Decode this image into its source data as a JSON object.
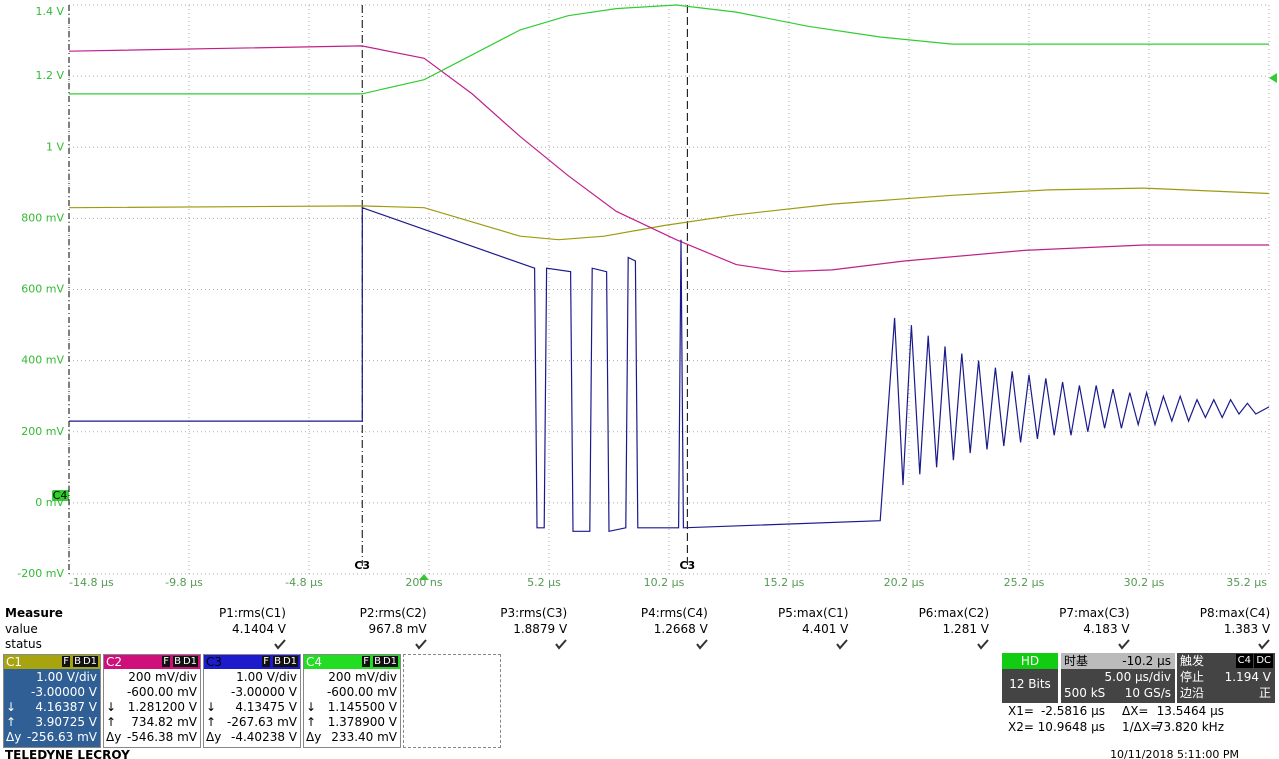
{
  "chart_data": {
    "type": "line",
    "xlim": [
      -14.8,
      35.2
    ],
    "ylim": [
      -0.2,
      1.4
    ],
    "grid": true,
    "xticks": [
      {
        "value": -14.8,
        "label": "-14.8 µs"
      },
      {
        "value": -9.8,
        "label": "-9.8 µs"
      },
      {
        "value": -4.8,
        "label": "-4.8 µs"
      },
      {
        "value": 0.2,
        "label": "200 ns"
      },
      {
        "value": 5.2,
        "label": "5.2 µs"
      },
      {
        "value": 10.2,
        "label": "10.2 µs"
      },
      {
        "value": 15.2,
        "label": "15.2 µs"
      },
      {
        "value": 20.2,
        "label": "20.2 µs"
      },
      {
        "value": 25.2,
        "label": "25.2 µs"
      },
      {
        "value": 30.2,
        "label": "30.2 µs"
      },
      {
        "value": 35.2,
        "label": "35.2 µs"
      }
    ],
    "yticks": [
      {
        "value": -0.2,
        "label": "-200 mV"
      },
      {
        "value": 0,
        "label": "0 mV"
      },
      {
        "value": 0.2,
        "label": "200 mV"
      },
      {
        "value": 0.4,
        "label": "400 mV"
      },
      {
        "value": 0.6,
        "label": "600 mV"
      },
      {
        "value": 0.8,
        "label": "800 mV"
      },
      {
        "value": 1,
        "label": "1 V"
      },
      {
        "value": 1.2,
        "label": "1.2 V"
      },
      {
        "value": 1.4,
        "label": "1.4 V"
      }
    ],
    "cursors": [
      {
        "x": -2.5816,
        "label": "C3"
      },
      {
        "x": 10.9648,
        "label": "C3"
      }
    ],
    "series": [
      {
        "name": "C1",
        "color": "#a09a10",
        "x": [
          -14.8,
          -2.6,
          0,
          2,
          4,
          5.6,
          7.5,
          10,
          13,
          17,
          22,
          26,
          30,
          35.2
        ],
        "values": [
          0.83,
          0.835,
          0.83,
          0.79,
          0.75,
          0.74,
          0.75,
          0.78,
          0.81,
          0.84,
          0.865,
          0.88,
          0.885,
          0.87
        ]
      },
      {
        "name": "C2",
        "color": "#c0208a",
        "x": [
          -14.8,
          -2.6,
          0,
          2,
          4,
          6,
          8,
          10.5,
          13,
          15,
          17,
          20,
          25,
          30,
          35.2
        ],
        "values": [
          1.27,
          1.285,
          1.25,
          1.15,
          1.03,
          0.92,
          0.82,
          0.74,
          0.67,
          0.65,
          0.655,
          0.68,
          0.71,
          0.725,
          0.725
        ]
      },
      {
        "name": "C3",
        "color": "#1a1a8c",
        "x": [
          -14.8,
          -2.58,
          -2.58,
          4.6,
          4.7,
          5.0,
          5.1,
          6.1,
          6.2,
          6.9,
          7.0,
          7.6,
          7.7,
          8.4,
          8.5,
          8.8,
          8.9,
          10.6,
          10.7,
          10.8,
          19.0,
          19.6,
          19.95,
          20.3,
          20.65,
          21.0,
          21.35,
          21.7,
          22.05,
          22.4,
          22.75,
          23.1,
          23.45,
          23.8,
          24.15,
          24.5,
          24.85,
          25.2,
          25.55,
          25.9,
          26.25,
          26.6,
          26.95,
          27.3,
          27.65,
          28.0,
          28.35,
          28.7,
          29.05,
          29.4,
          29.75,
          30.1,
          30.45,
          30.8,
          31.15,
          31.5,
          31.85,
          32.2,
          32.55,
          32.9,
          33.25,
          33.6,
          33.95,
          34.3,
          34.65,
          35.2
        ],
        "values": [
          0.23,
          0.23,
          0.83,
          0.66,
          -0.07,
          -0.07,
          0.66,
          0.65,
          -0.08,
          -0.08,
          0.66,
          0.65,
          -0.08,
          -0.07,
          0.69,
          0.68,
          -0.07,
          -0.07,
          0.74,
          -0.07,
          -0.05,
          0.52,
          0.05,
          0.5,
          0.08,
          0.47,
          0.1,
          0.44,
          0.12,
          0.42,
          0.14,
          0.4,
          0.15,
          0.38,
          0.16,
          0.37,
          0.17,
          0.36,
          0.18,
          0.35,
          0.19,
          0.34,
          0.19,
          0.33,
          0.2,
          0.33,
          0.21,
          0.32,
          0.21,
          0.31,
          0.22,
          0.31,
          0.22,
          0.3,
          0.23,
          0.3,
          0.23,
          0.29,
          0.24,
          0.29,
          0.24,
          0.29,
          0.25,
          0.28,
          0.25,
          0.27
        ]
      },
      {
        "name": "C4",
        "color": "#33cc33",
        "x": [
          -14.8,
          -2.6,
          0,
          2,
          4,
          6,
          8,
          10.5,
          13,
          16,
          19,
          22,
          26,
          35.2
        ],
        "values": [
          1.15,
          1.15,
          1.19,
          1.26,
          1.33,
          1.37,
          1.39,
          1.4,
          1.38,
          1.34,
          1.31,
          1.29,
          1.29,
          1.29
        ]
      }
    ]
  },
  "measure": {
    "title": "Measure",
    "row_labels": [
      "value",
      "status"
    ],
    "columns": [
      {
        "name": "P1:rms(C1)",
        "value": "4.1404 V"
      },
      {
        "name": "P2:rms(C2)",
        "value": "967.8 mV"
      },
      {
        "name": "P3:rms(C3)",
        "value": "1.8879 V"
      },
      {
        "name": "P4:rms(C4)",
        "value": "1.2668 V"
      },
      {
        "name": "P5:max(C1)",
        "value": "4.401 V"
      },
      {
        "name": "P6:max(C2)",
        "value": "1.281 V"
      },
      {
        "name": "P7:max(C3)",
        "value": "4.183 V"
      },
      {
        "name": "P8:max(C4)",
        "value": "1.383 V"
      }
    ]
  },
  "channels": [
    {
      "name": "C1",
      "badges": [
        "F",
        "B",
        "D1"
      ],
      "rows": [
        {
          "value": "1.00 V/div"
        },
        {
          "value": "-3.00000 V"
        },
        {
          "symbol": "↓",
          "value": "4.16387 V"
        },
        {
          "symbol": "↑",
          "value": "3.90725 V"
        },
        {
          "symbol": "Δy",
          "value": "-256.63 mV"
        }
      ]
    },
    {
      "name": "C2",
      "badges": [
        "F",
        "B",
        "D1"
      ],
      "rows": [
        {
          "value": "200 mV/div"
        },
        {
          "value": "-600.00 mV"
        },
        {
          "symbol": "↓",
          "value": "1.281200 V"
        },
        {
          "symbol": "↑",
          "value": "734.82 mV"
        },
        {
          "symbol": "Δy",
          "value": "-546.38 mV"
        }
      ]
    },
    {
      "name": "C3",
      "badges": [
        "F",
        "B",
        "D1"
      ],
      "rows": [
        {
          "value": "1.00 V/div"
        },
        {
          "value": "-3.00000 V"
        },
        {
          "symbol": "↓",
          "value": "4.13475 V"
        },
        {
          "symbol": "↑",
          "value": "-267.63 mV"
        },
        {
          "symbol": "Δy",
          "value": "-4.40238 V"
        }
      ]
    },
    {
      "name": "C4",
      "badges": [
        "F",
        "B",
        "D1"
      ],
      "rows": [
        {
          "value": "200 mV/div"
        },
        {
          "value": "-600.00 mV"
        },
        {
          "symbol": "↓",
          "value": "1.145500 V"
        },
        {
          "symbol": "↑",
          "value": "1.378900 V"
        },
        {
          "symbol": "Δy",
          "value": "233.40 mV"
        }
      ]
    }
  ],
  "acquisition": {
    "mode": "HD",
    "bits": "12 Bits"
  },
  "timebase": {
    "title": "时基",
    "delay": "-10.2 µs",
    "scale": "5.00 µs/div",
    "samples": "500 kS",
    "rate": "10 GS/s"
  },
  "trigger": {
    "title": "触发",
    "source": "C4",
    "coupling": "DC",
    "state": "停止",
    "level": "1.194 V",
    "kind": "边沿",
    "slope": "正"
  },
  "cursor_readout": [
    {
      "label": "X1=",
      "value": "-2.5816 µs"
    },
    {
      "label": "ΔX=",
      "value": "13.5464 µs"
    },
    {
      "label": "X2=",
      "value": "10.9648 µs"
    },
    {
      "label": "1/ΔX=",
      "value": "73.820 kHz"
    }
  ],
  "footer": {
    "brand": "TELEDYNE LECROY",
    "timestamp": "10/11/2018 5:11:00 PM"
  }
}
